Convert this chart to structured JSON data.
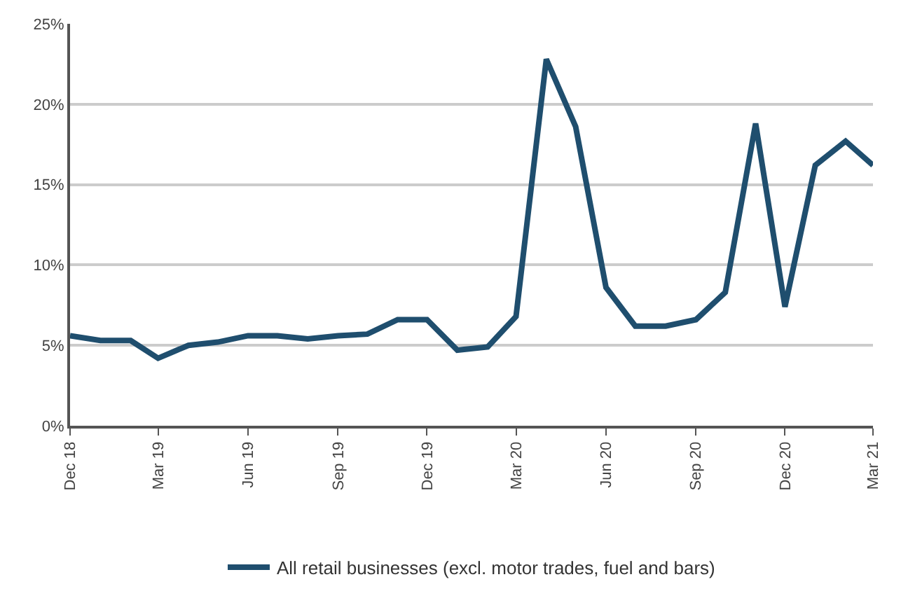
{
  "chart_data": {
    "type": "line",
    "x": [
      "2018-12",
      "2019-01",
      "2019-02",
      "2019-03",
      "2019-04",
      "2019-05",
      "2019-06",
      "2019-07",
      "2019-08",
      "2019-09",
      "2019-10",
      "2019-11",
      "2019-12",
      "2020-01",
      "2020-02",
      "2020-03",
      "2020-04",
      "2020-05",
      "2020-06",
      "2020-07",
      "2020-08",
      "2020-09",
      "2020-10",
      "2020-11",
      "2020-12",
      "2021-01",
      "2021-02",
      "2021-03"
    ],
    "series": [
      {
        "name": "All retail businesses (excl. motor trades, fuel and bars)",
        "color": "#1f4e6e",
        "values": [
          5.6,
          5.3,
          5.3,
          4.2,
          5.0,
          5.2,
          5.6,
          5.6,
          5.4,
          5.6,
          5.7,
          6.6,
          6.6,
          4.7,
          4.9,
          6.8,
          22.8,
          18.6,
          8.6,
          6.2,
          6.2,
          6.6,
          8.3,
          18.8,
          7.4,
          16.2,
          17.7,
          16.2
        ]
      }
    ],
    "xlim": [
      "2018-12",
      "2021-03"
    ],
    "xticks": [
      {
        "value": "2018-12",
        "label": "Dec 18"
      },
      {
        "value": "2019-03",
        "label": "Mar 19"
      },
      {
        "value": "2019-06",
        "label": "Jun 19"
      },
      {
        "value": "2019-09",
        "label": "Sep 19"
      },
      {
        "value": "2019-12",
        "label": "Dec 19"
      },
      {
        "value": "2020-03",
        "label": "Mar 20"
      },
      {
        "value": "2020-06",
        "label": "Jun 20"
      },
      {
        "value": "2020-09",
        "label": "Sep 20"
      },
      {
        "value": "2020-12",
        "label": "Dec 20"
      },
      {
        "value": "2021-03",
        "label": "Mar 21"
      }
    ],
    "ylim": [
      0,
      25
    ],
    "yticks": [
      {
        "value": 0,
        "label": "0%"
      },
      {
        "value": 5,
        "label": "5%"
      },
      {
        "value": 10,
        "label": "10%"
      },
      {
        "value": 15,
        "label": "15%"
      },
      {
        "value": 20,
        "label": "20%"
      },
      {
        "value": 25,
        "label": "25%"
      }
    ],
    "grid": "y",
    "legend": "bottom",
    "marker": "none",
    "line_style": "solid"
  }
}
